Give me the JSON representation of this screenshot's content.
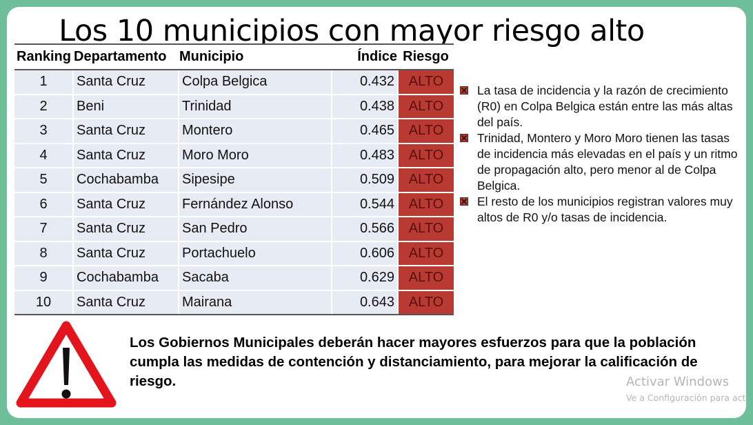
{
  "title": "Los 10 municipios con mayor riesgo alto",
  "table": {
    "headers": [
      "Ranking",
      "Departamento",
      "Municipio",
      "Índice",
      "Riesgo"
    ],
    "rows": [
      [
        "1",
        "Santa Cruz",
        "Colpa Belgica",
        "0.432",
        "ALTO"
      ],
      [
        "2",
        "Beni",
        "Trinidad",
        "0.438",
        "ALTO"
      ],
      [
        "3",
        "Santa Cruz",
        "Montero",
        "0.465",
        "ALTO"
      ],
      [
        "4",
        "Santa Cruz",
        "Moro Moro",
        "0.483",
        "ALTO"
      ],
      [
        "5",
        "Cochabamba",
        "Sipesipe",
        "0.509",
        "ALTO"
      ],
      [
        "6",
        "Santa Cruz",
        "Fernández Alonso",
        "0.544",
        "ALTO"
      ],
      [
        "7",
        "Santa Cruz",
        "San Pedro",
        "0.566",
        "ALTO"
      ],
      [
        "8",
        "Santa Cruz",
        "Portachuelo",
        "0.606",
        "ALTO"
      ],
      [
        "9",
        "Cochabamba",
        "Sacaba",
        "0.629",
        "ALTO"
      ],
      [
        "10",
        "Santa Cruz",
        "Mairana",
        "0.643",
        "ALTO"
      ]
    ],
    "risk_color": "#b83a32"
  },
  "bullets": [
    "La tasa de incidencia y la razón de crecimiento (R0) en Colpa Belgica están entre las más altas del país.",
    "Trinidad, Montero y Moro Moro tienen las tasas de incidencia más elevadas en el país y un ritmo de propagación alto, pero menor al de Colpa Belgica.",
    "El resto de los municipios registran valores muy altos de R0 y/o tasas de incidencia."
  ],
  "warning_icon": "warning-triangle-icon",
  "notice": "Los Gobiernos Municipales deberán hacer mayores esfuerzos para que la población cumpla las medidas de contención y distanciamiento, para mejorar la calificación de riesgo.",
  "watermark": {
    "line1": "Activar Windows",
    "line2": "Ve a Configuración para activar Windows."
  },
  "colors": {
    "background": "#6fbf9b",
    "risk": "#b83a32",
    "row": "#e7ecf4"
  }
}
